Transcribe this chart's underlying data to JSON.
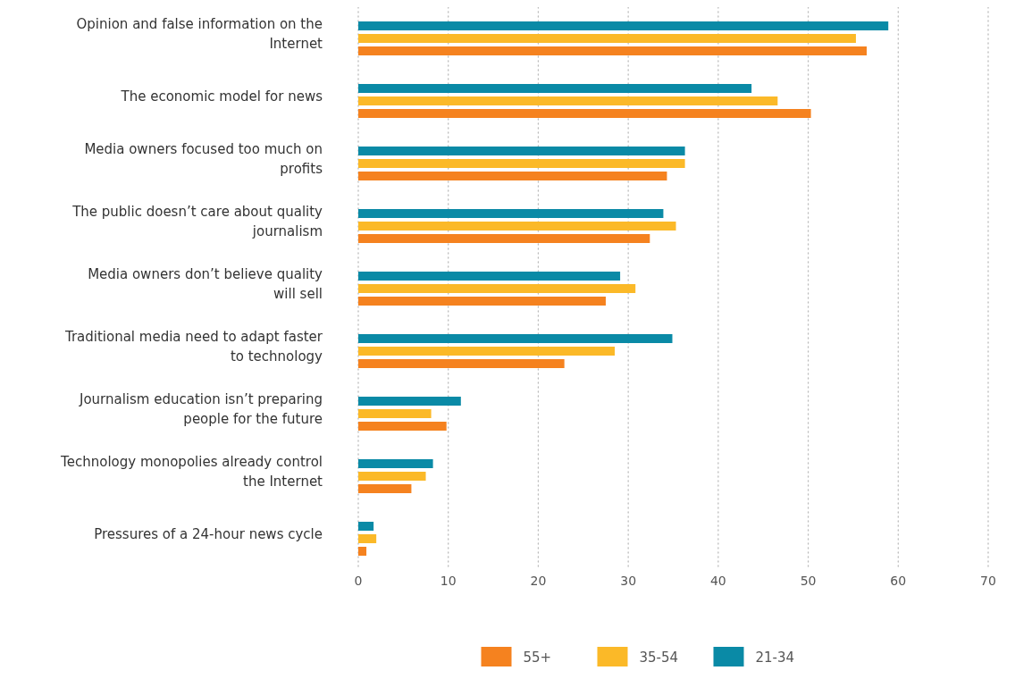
{
  "chart_data": {
    "type": "bar",
    "orientation": "horizontal",
    "categories": [
      "Opinion and false information on the Internet",
      "The economic model for news",
      "Media owners focused too much on profits",
      "The public doesn’t care about quality journalism",
      "Media owners don’t believe quality will sell",
      "Traditional media need to adapt faster to technology",
      "Journalism education isn’t preparing people for the future",
      "Technology monopolies already control the Internet",
      "Pressures of a 24-hour news cycle"
    ],
    "series": [
      {
        "name": "55+",
        "color": "#f5821f",
        "values": [
          56.5,
          50.3,
          34.3,
          32.4,
          27.5,
          22.9,
          9.8,
          5.9,
          0.9
        ]
      },
      {
        "name": "35-54",
        "color": "#fbb928",
        "values": [
          55.3,
          46.6,
          36.3,
          35.3,
          30.8,
          28.5,
          8.1,
          7.5,
          2.0
        ]
      },
      {
        "name": "21-34",
        "color": "#0a8aa6",
        "values": [
          58.9,
          43.7,
          36.3,
          33.9,
          29.1,
          34.9,
          11.4,
          8.3,
          1.7
        ]
      }
    ],
    "xlim": [
      0,
      70
    ],
    "xticks": [
      0,
      10,
      20,
      30,
      40,
      50,
      60,
      70
    ],
    "grid": "x",
    "legend": "bottom"
  }
}
